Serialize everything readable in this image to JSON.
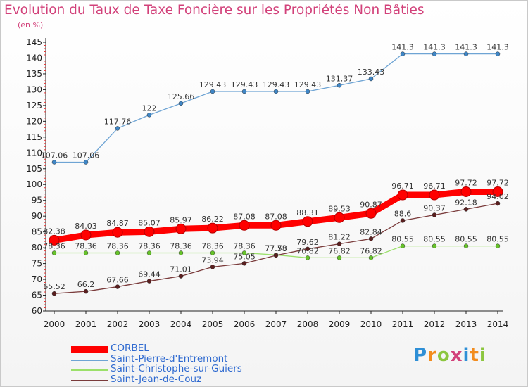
{
  "title": "Evolution du Taux de Taxe Foncière sur les Propriétés Non Bâties",
  "unit_label": "(en %)",
  "brand": {
    "text": "Proxiti",
    "colors": [
      "#2e8fd6",
      "#f28c1e",
      "#8cc63f",
      "#d2417a"
    ]
  },
  "chart_data": {
    "type": "line",
    "title": "Evolution du Taux de Taxe Foncière sur les Propriétés Non Bâties",
    "ylabel": "(en %)",
    "x": [
      2000,
      2001,
      2002,
      2003,
      2004,
      2005,
      2006,
      2007,
      2008,
      2009,
      2010,
      2011,
      2012,
      2013,
      2014
    ],
    "ylim": [
      60,
      145
    ],
    "yticks": [
      60,
      65,
      70,
      75,
      80,
      85,
      90,
      95,
      100,
      105,
      110,
      115,
      120,
      125,
      130,
      135,
      140,
      145
    ],
    "grid": false,
    "legend": "bottom-left",
    "series": [
      {
        "name": "CORBEL",
        "color": "#ff0000",
        "style": "thick",
        "values": [
          82.38,
          84.03,
          84.87,
          85.07,
          85.97,
          86.22,
          87.08,
          87.08,
          88.31,
          89.53,
          90.87,
          96.71,
          96.71,
          97.72,
          97.72
        ],
        "labels": [
          "82.38",
          "84.03",
          "84.87",
          "85.07",
          "85.97",
          "86.22",
          "87.08",
          "87.08",
          "88.31",
          "89.53",
          "90.87",
          "96.71",
          "96.71",
          "97.72",
          "97.72"
        ]
      },
      {
        "name": "Saint-Pierre-d'Entremont",
        "color": "#6ea4d4",
        "point": "#3f86c6",
        "values": [
          107.06,
          107.06,
          117.76,
          122,
          125.66,
          129.43,
          129.43,
          129.43,
          129.43,
          131.37,
          133.43,
          141.3,
          141.3,
          141.3,
          141.3
        ],
        "labels": [
          "107.06",
          "107.06",
          "117.76",
          "122",
          "125.66",
          "129.43",
          "129.43",
          "129.43",
          "129.43",
          "131.37",
          "133.43",
          "141.3",
          "141.3",
          "141.3",
          "141.3"
        ]
      },
      {
        "name": "Saint-Christophe-sur-Guiers",
        "color": "#9be06a",
        "point": "#66c22a",
        "values": [
          78.36,
          78.36,
          78.36,
          78.36,
          78.36,
          78.36,
          78.36,
          77.73,
          76.82,
          76.82,
          76.82,
          80.55,
          80.55,
          80.55,
          80.55
        ],
        "labels": [
          "78.36",
          "78.36",
          "78.36",
          "78.36",
          "78.36",
          "78.36",
          "78.36",
          "77.73",
          "76.82",
          "76.82",
          "76.82",
          "80.55",
          "80.55",
          "80.55",
          "80.55"
        ]
      },
      {
        "name": "Saint-Jean-de-Couz",
        "color": "#7a3b3b",
        "point": "#5a1f1f",
        "values": [
          65.52,
          66.2,
          67.66,
          69.44,
          71.01,
          73.94,
          75.05,
          77.58,
          79.62,
          81.22,
          82.84,
          88.6,
          90.37,
          92.18,
          94.02
        ],
        "labels": [
          "65.52",
          "66.2",
          "67.66",
          "69.44",
          "71.01",
          "73.94",
          "75.05",
          "77.58",
          "79.62",
          "81.22",
          "82.84",
          "88.6",
          "90.37",
          "92.18",
          "94.02"
        ]
      }
    ]
  }
}
